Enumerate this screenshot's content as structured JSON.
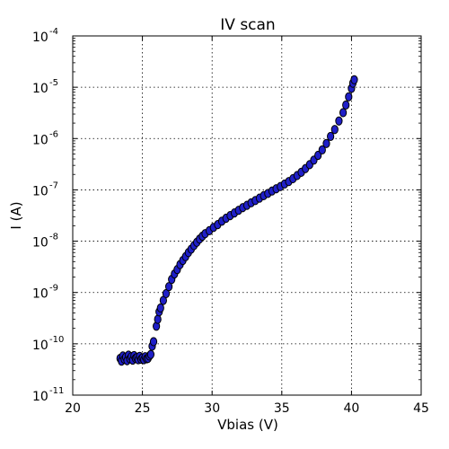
{
  "chart_data": {
    "type": "scatter",
    "title": "IV scan",
    "xlabel": "Vbias (V)",
    "ylabel": "I (A)",
    "xlim": [
      20,
      45
    ],
    "ylim": [
      1e-11,
      0.0001
    ],
    "yscale": "log",
    "grid": true,
    "x_ticks": [
      {
        "value": 20,
        "label": "20"
      },
      {
        "value": 25,
        "label": "25"
      },
      {
        "value": 30,
        "label": "30"
      },
      {
        "value": 35,
        "label": "35"
      },
      {
        "value": 40,
        "label": "40"
      },
      {
        "value": 45,
        "label": "45"
      }
    ],
    "y_ticks": [
      {
        "value": 1e-11,
        "base": "10",
        "exp": "-11"
      },
      {
        "value": 1e-10,
        "base": "10",
        "exp": "-10"
      },
      {
        "value": 1e-09,
        "base": "10",
        "exp": "-9"
      },
      {
        "value": 1e-08,
        "base": "10",
        "exp": "-8"
      },
      {
        "value": 1e-07,
        "base": "10",
        "exp": "-7"
      },
      {
        "value": 1e-06,
        "base": "10",
        "exp": "-6"
      },
      {
        "value": 1e-05,
        "base": "10",
        "exp": "-5"
      },
      {
        "value": 0.0001,
        "base": "10",
        "exp": "-4"
      }
    ],
    "marker_color": "#1f1fc8",
    "points": [
      [
        23.4,
        5.2e-11
      ],
      [
        23.5,
        4.6e-11
      ],
      [
        23.6,
        5.8e-11
      ],
      [
        23.7,
        5e-11
      ],
      [
        23.8,
        5.5e-11
      ],
      [
        23.9,
        4.7e-11
      ],
      [
        24.0,
        6e-11
      ],
      [
        24.1,
        5.1e-11
      ],
      [
        24.2,
        5.6e-11
      ],
      [
        24.3,
        4.8e-11
      ],
      [
        24.4,
        5.9e-11
      ],
      [
        24.5,
        5.2e-11
      ],
      [
        24.6,
        5.4e-11
      ],
      [
        24.7,
        4.9e-11
      ],
      [
        24.8,
        5.7e-11
      ],
      [
        24.9,
        5e-11
      ],
      [
        25.0,
        5.3e-11
      ],
      [
        25.1,
        4.9e-11
      ],
      [
        25.2,
        5.6e-11
      ],
      [
        25.3,
        5.1e-11
      ],
      [
        25.4,
        5.2e-11
      ],
      [
        25.5,
        5.8e-11
      ],
      [
        25.6,
        6.2e-11
      ],
      [
        25.7,
        9e-11
      ],
      [
        25.8,
        1.1e-10
      ],
      [
        26.0,
        2.2e-10
      ],
      [
        26.1,
        3e-10
      ],
      [
        26.2,
        4.2e-10
      ],
      [
        26.3,
        5e-10
      ],
      [
        26.5,
        7e-10
      ],
      [
        26.7,
        9.5e-10
      ],
      [
        26.9,
        1.3e-09
      ],
      [
        27.1,
        1.8e-09
      ],
      [
        27.3,
        2.3e-09
      ],
      [
        27.5,
        2.8e-09
      ],
      [
        27.7,
        3.5e-09
      ],
      [
        27.9,
        4.2e-09
      ],
      [
        28.1,
        5e-09
      ],
      [
        28.3,
        6e-09
      ],
      [
        28.5,
        7e-09
      ],
      [
        28.7,
        8.2e-09
      ],
      [
        28.9,
        9.5e-09
      ],
      [
        29.1,
        1.1e-08
      ],
      [
        29.3,
        1.25e-08
      ],
      [
        29.5,
        1.4e-08
      ],
      [
        29.8,
        1.6e-08
      ],
      [
        30.1,
        1.85e-08
      ],
      [
        30.4,
        2.1e-08
      ],
      [
        30.7,
        2.45e-08
      ],
      [
        31.0,
        2.8e-08
      ],
      [
        31.3,
        3.15e-08
      ],
      [
        31.6,
        3.55e-08
      ],
      [
        31.9,
        4e-08
      ],
      [
        32.2,
        4.5e-08
      ],
      [
        32.5,
        5e-08
      ],
      [
        32.8,
        5.6e-08
      ],
      [
        33.1,
        6.2e-08
      ],
      [
        33.4,
        6.9e-08
      ],
      [
        33.7,
        7.7e-08
      ],
      [
        34.0,
        8.5e-08
      ],
      [
        34.3,
        9.5e-08
      ],
      [
        34.6,
        1.05e-07
      ],
      [
        34.9,
        1.16e-07
      ],
      [
        35.2,
        1.3e-07
      ],
      [
        35.5,
        1.45e-07
      ],
      [
        35.8,
        1.65e-07
      ],
      [
        36.1,
        1.9e-07
      ],
      [
        36.4,
        2.2e-07
      ],
      [
        36.7,
        2.6e-07
      ],
      [
        37.0,
        3.1e-07
      ],
      [
        37.3,
        3.8e-07
      ],
      [
        37.6,
        4.7e-07
      ],
      [
        37.9,
        6e-07
      ],
      [
        38.2,
        8e-07
      ],
      [
        38.5,
        1.1e-06
      ],
      [
        38.8,
        1.5e-06
      ],
      [
        39.1,
        2.2e-06
      ],
      [
        39.4,
        3.2e-06
      ],
      [
        39.6,
        4.5e-06
      ],
      [
        39.8,
        6.5e-06
      ],
      [
        40.0,
        9.5e-06
      ],
      [
        40.1,
        1.2e-05
      ],
      [
        40.2,
        1.4e-05
      ]
    ]
  }
}
